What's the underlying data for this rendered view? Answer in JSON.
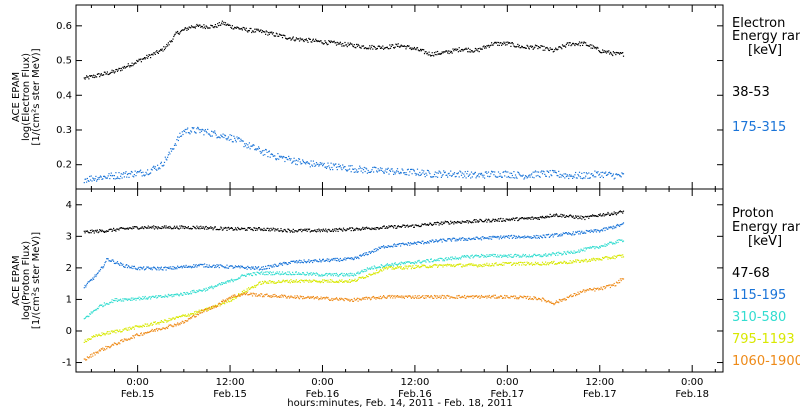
{
  "chart_data": [
    {
      "type": "scatter",
      "panel": "electron",
      "ylabel_lines": [
        "ACE EPAM",
        "log(Electron Flux)",
        "[1/(cm²s ster MeV)]"
      ],
      "ylim": [
        0.13,
        0.66
      ],
      "yticks": [
        0.2,
        0.3,
        0.4,
        0.5,
        0.6
      ],
      "ytick_labels": [
        "0.2",
        "0.3",
        "0.4",
        "0.5",
        "0.6"
      ],
      "legend_title_lines": [
        "Electron",
        "Energy ran",
        "[keV]"
      ],
      "series": [
        {
          "name": "38-53",
          "color": "#000000",
          "anchors_hours": [
            -7,
            -5,
            -3,
            -1,
            1,
            3,
            4,
            5,
            6,
            7,
            8,
            10,
            11,
            12,
            14,
            16,
            18,
            20,
            22,
            24,
            26,
            28,
            30,
            32,
            34,
            36,
            38,
            40,
            42,
            44,
            46,
            48,
            50,
            52,
            54,
            56,
            58,
            60,
            62,
            63
          ],
          "anchors_values": [
            0.45,
            0.46,
            0.47,
            0.49,
            0.51,
            0.53,
            0.55,
            0.58,
            0.59,
            0.6,
            0.6,
            0.6,
            0.61,
            0.6,
            0.59,
            0.585,
            0.575,
            0.565,
            0.56,
            0.555,
            0.55,
            0.545,
            0.54,
            0.54,
            0.545,
            0.535,
            0.52,
            0.525,
            0.535,
            0.53,
            0.55,
            0.55,
            0.54,
            0.54,
            0.53,
            0.55,
            0.55,
            0.53,
            0.52,
            0.52
          ],
          "noise": 0.006
        },
        {
          "name": "175-315",
          "color": "#1a74d8",
          "anchors_hours": [
            -7,
            -5,
            -3,
            -1,
            1,
            3,
            4,
            5,
            6,
            8,
            10,
            12,
            14,
            16,
            18,
            20,
            22,
            24,
            26,
            28,
            30,
            32,
            34,
            36,
            38,
            40,
            42,
            44,
            46,
            48,
            50,
            52,
            54,
            56,
            58,
            60,
            62,
            63
          ],
          "anchors_values": [
            0.16,
            0.165,
            0.17,
            0.175,
            0.18,
            0.2,
            0.23,
            0.27,
            0.3,
            0.3,
            0.29,
            0.28,
            0.26,
            0.24,
            0.225,
            0.215,
            0.205,
            0.2,
            0.195,
            0.19,
            0.185,
            0.185,
            0.18,
            0.18,
            0.175,
            0.175,
            0.175,
            0.17,
            0.175,
            0.175,
            0.17,
            0.175,
            0.175,
            0.17,
            0.17,
            0.175,
            0.17,
            0.17
          ],
          "noise": 0.01
        }
      ]
    },
    {
      "type": "scatter",
      "panel": "proton",
      "ylabel_lines": [
        "ACE EPAM",
        "log(Proton Flux)",
        "[1/(cm²s ster MeV)]"
      ],
      "ylim": [
        -1.3,
        4.5
      ],
      "yticks": [
        -1,
        0,
        1,
        2,
        3,
        4
      ],
      "ytick_labels": [
        "-1",
        "0",
        "1",
        "2",
        "3",
        "4"
      ],
      "legend_title_lines": [
        "Proton",
        "Energy ran",
        "[keV]"
      ],
      "series": [
        {
          "name": "47-68",
          "color": "#000000",
          "anchors_hours": [
            -7,
            -4,
            0,
            4,
            8,
            12,
            16,
            20,
            24,
            28,
            32,
            36,
            40,
            44,
            48,
            52,
            54,
            56,
            58,
            60,
            62,
            63
          ],
          "anchors_values": [
            3.15,
            3.2,
            3.3,
            3.3,
            3.3,
            3.25,
            3.25,
            3.2,
            3.2,
            3.25,
            3.3,
            3.35,
            3.45,
            3.5,
            3.55,
            3.6,
            3.7,
            3.65,
            3.6,
            3.7,
            3.75,
            3.8
          ],
          "noise": 0.05
        },
        {
          "name": "115-195",
          "color": "#1a74d8",
          "anchors_hours": [
            -7,
            -5,
            -4,
            -2,
            0,
            4,
            8,
            12,
            16,
            20,
            24,
            28,
            30,
            32,
            36,
            40,
            44,
            48,
            52,
            56,
            60,
            63
          ],
          "anchors_values": [
            1.4,
            1.9,
            2.3,
            2.1,
            2.0,
            2.0,
            2.1,
            2.05,
            2.0,
            2.2,
            2.25,
            2.3,
            2.5,
            2.7,
            2.8,
            2.9,
            2.95,
            3.0,
            3.0,
            3.1,
            3.2,
            3.4
          ],
          "noise": 0.05
        },
        {
          "name": "310-580",
          "color": "#33ddd0",
          "anchors_hours": [
            -7,
            -5,
            -3,
            0,
            3,
            6,
            9,
            12,
            14,
            16,
            20,
            24,
            28,
            30,
            32,
            36,
            40,
            44,
            48,
            52,
            56,
            60,
            63
          ],
          "anchors_values": [
            0.4,
            0.8,
            1.0,
            1.05,
            1.1,
            1.2,
            1.35,
            1.6,
            1.8,
            1.85,
            1.85,
            1.8,
            1.8,
            2.0,
            2.1,
            2.2,
            2.3,
            2.4,
            2.4,
            2.4,
            2.5,
            2.7,
            2.9
          ],
          "noise": 0.05
        },
        {
          "name": "795-1193",
          "color": "#d8e800",
          "anchors_hours": [
            -7,
            -5,
            -3,
            0,
            3,
            6,
            9,
            12,
            14,
            16,
            20,
            24,
            28,
            30,
            32,
            36,
            40,
            44,
            48,
            52,
            56,
            60,
            63
          ],
          "anchors_values": [
            -0.3,
            -0.1,
            0.0,
            0.15,
            0.3,
            0.5,
            0.7,
            1.0,
            1.3,
            1.55,
            1.6,
            1.6,
            1.6,
            1.8,
            2.0,
            2.05,
            2.1,
            2.1,
            2.15,
            2.15,
            2.2,
            2.3,
            2.4
          ],
          "noise": 0.05
        },
        {
          "name": "1060-1900",
          "color": "#ee8a18",
          "anchors_hours": [
            -7,
            -5,
            -3,
            0,
            3,
            6,
            8,
            10,
            12,
            14,
            16,
            20,
            24,
            28,
            30,
            32,
            36,
            40,
            44,
            48,
            52,
            54,
            56,
            58,
            60,
            62,
            63
          ],
          "anchors_values": [
            -0.9,
            -0.6,
            -0.4,
            -0.1,
            0.1,
            0.3,
            0.6,
            0.8,
            1.1,
            1.2,
            1.15,
            1.1,
            1.05,
            1.0,
            1.05,
            1.1,
            1.1,
            1.1,
            1.1,
            1.1,
            1.05,
            0.9,
            1.1,
            1.3,
            1.35,
            1.5,
            1.7
          ],
          "noise": 0.05
        }
      ]
    }
  ],
  "x_axis": {
    "xlim_hours": [
      -8,
      76
    ],
    "ticks": [
      {
        "hours": 0,
        "time": "0:00",
        "date": "Feb.15"
      },
      {
        "hours": 12,
        "time": "12:00",
        "date": "Feb.15"
      },
      {
        "hours": 24,
        "time": "0:00",
        "date": "Feb.16"
      },
      {
        "hours": 36,
        "time": "12:00",
        "date": "Feb.16"
      },
      {
        "hours": 48,
        "time": "0:00",
        "date": "Feb.17"
      },
      {
        "hours": 60,
        "time": "12:00",
        "date": "Feb.17"
      },
      {
        "hours": 72,
        "time": "0:00",
        "date": "Feb.18"
      }
    ],
    "title": "hours:minutes, Feb. 14, 2011 - Feb. 18, 2011"
  }
}
